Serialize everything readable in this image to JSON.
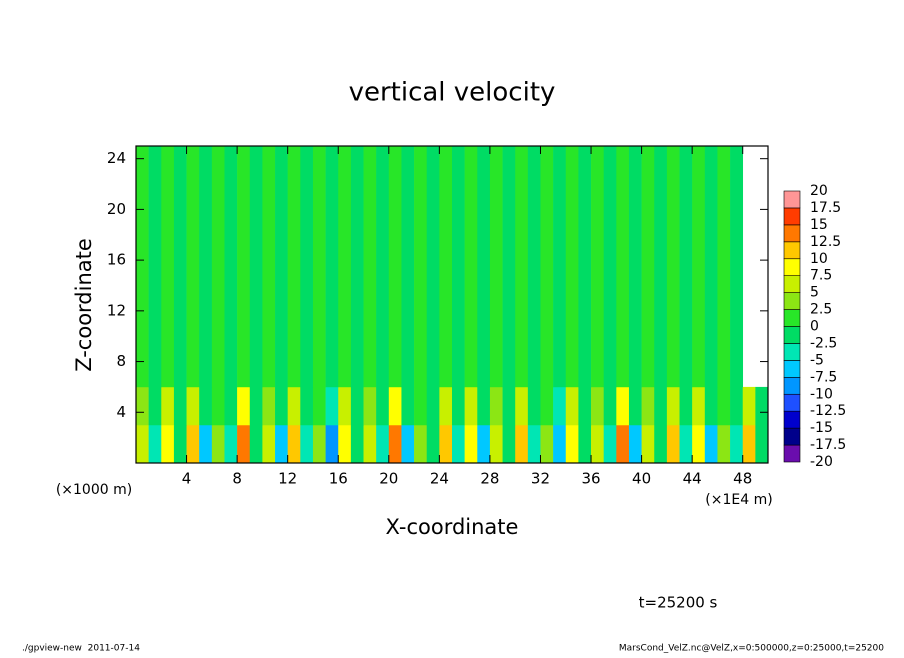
{
  "chart_data": {
    "type": "heatmap",
    "title": "vertical velocity",
    "x_label": "X-coordinate",
    "y_label": "Z-coordinate",
    "x_unit": "(×1E4 m)",
    "y_unit": "(×1000 m)",
    "xlim": [
      0,
      50
    ],
    "ylim": [
      0,
      25
    ],
    "xticks": [
      4,
      8,
      12,
      16,
      20,
      24,
      28,
      32,
      36,
      40,
      44,
      48
    ],
    "yticks": [
      4,
      8,
      12,
      16,
      20,
      24
    ],
    "xbins": [
      0,
      1,
      2,
      3,
      4,
      5,
      6,
      7,
      8,
      9,
      10,
      11,
      12,
      13,
      14,
      15,
      16,
      17,
      18,
      19,
      20,
      21,
      22,
      23,
      24,
      25,
      26,
      27,
      28,
      29,
      30,
      31,
      32,
      33,
      34,
      35,
      36,
      37,
      38,
      39,
      40,
      41,
      42,
      43,
      44,
      45,
      46,
      47,
      48,
      49,
      50
    ],
    "ybins": [
      0,
      3,
      6,
      25
    ],
    "values": [
      [
        5,
        -5,
        7.5,
        -2.5,
        10,
        -7.5,
        2.5,
        -5,
        12.5,
        -2.5,
        5,
        -7.5,
        10,
        -5,
        2.5,
        -10,
        7.5,
        -2.5,
        5,
        -5,
        12.5,
        -7.5,
        2.5,
        -2.5,
        10,
        -5,
        7.5,
        -7.5,
        5,
        -2.5,
        10,
        -5,
        2.5,
        -7.5,
        7.5,
        -2.5,
        5,
        -5,
        12.5,
        -7.5,
        5,
        -2.5,
        10,
        -5,
        7.5,
        -7.5,
        2.5,
        -5,
        10,
        -2.5
      ],
      [
        2.5,
        -2.5,
        5,
        -1,
        5,
        -2.5,
        1,
        -2.5,
        7.5,
        -1,
        2.5,
        -2.5,
        5,
        -2.5,
        1,
        -5,
        5,
        -1,
        2.5,
        -2.5,
        7.5,
        -2.5,
        1,
        -1,
        5,
        -2.5,
        5,
        -2.5,
        2.5,
        -1,
        5,
        -2.5,
        1,
        -5,
        5,
        -1,
        2.5,
        -2.5,
        7.5,
        -2.5,
        2.5,
        -1,
        5,
        -2.5,
        5,
        -2.5,
        1,
        -2.5,
        5,
        -1
      ],
      [
        1,
        -0.5,
        1,
        -0.5,
        1,
        -0.5,
        1,
        -0.5,
        1,
        -0.5,
        1,
        -0.5,
        1,
        -0.5,
        1,
        -0.5,
        1,
        -0.5,
        1,
        -0.5,
        1,
        -0.5,
        1,
        -0.5,
        1,
        -0.5,
        1,
        -0.5,
        1,
        -0.5,
        1,
        -0.5,
        1,
        -0.5,
        1,
        -0.5,
        1,
        -0.5,
        1,
        -0.5,
        1,
        -0.5,
        1,
        -0.5,
        1,
        -0.5,
        1,
        -0.5
      ]
    ],
    "levels": [
      -20,
      -17.5,
      -15,
      -12.5,
      -10,
      -7.5,
      -5,
      -2.5,
      0,
      2.5,
      5,
      7.5,
      10,
      12.5,
      15,
      17.5,
      20
    ],
    "colors": [
      "#6a0dad",
      "#00008b",
      "#0000cd",
      "#1e50ff",
      "#0096ff",
      "#00c8ff",
      "#00e6b4",
      "#00dc64",
      "#28e628",
      "#8ce614",
      "#c8f000",
      "#ffff00",
      "#ffc800",
      "#ff7800",
      "#ff3c00",
      "#ff9696"
    ],
    "annotation": "t=25200 s",
    "footer_left": "./gpview-new  2011-07-14",
    "footer_right": "MarsCond_VelZ.nc@VelZ,x=0:500000,z=0:25000,t=25200"
  }
}
